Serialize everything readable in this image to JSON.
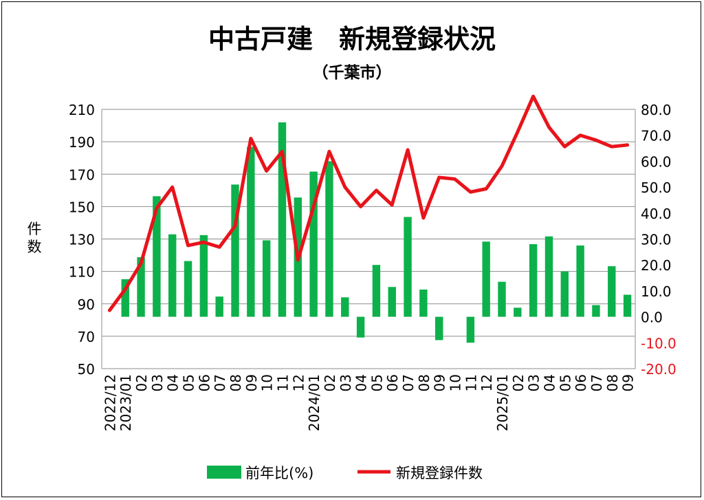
{
  "chart_data": {
    "type": "bar+line",
    "title": "中古戸建　新規登録状況",
    "subtitle": "（千葉市）",
    "ylabel_left": "件数",
    "categories": [
      "2022/12",
      "2023/01",
      "02",
      "03",
      "04",
      "05",
      "06",
      "07",
      "08",
      "09",
      "10",
      "11",
      "12",
      "2024/01",
      "02",
      "03",
      "04",
      "05",
      "06",
      "07",
      "08",
      "09",
      "10",
      "11",
      "12",
      "2025/01",
      "02",
      "03",
      "04",
      "05",
      "06",
      "07",
      "08",
      "09"
    ],
    "y_left": {
      "min": 50,
      "max": 210,
      "ticks": [
        "50",
        "70",
        "90",
        "110",
        "130",
        "150",
        "170",
        "190",
        "210"
      ]
    },
    "y_right": {
      "min": -20,
      "max": 80,
      "ticks": [
        "-20.0",
        "-10.0",
        "0.0",
        "10.0",
        "20.0",
        "30.0",
        "40.0",
        "50.0",
        "60.0",
        "70.0",
        "80.0"
      ]
    },
    "series": [
      {
        "name": "前年比(%)",
        "type": "bar",
        "axis": "right",
        "color": "#0db14b",
        "values": [
          null,
          14.5,
          23.0,
          46.5,
          31.8,
          21.5,
          31.5,
          7.8,
          51.0,
          65.5,
          29.5,
          75.0,
          46.0,
          56.0,
          60.0,
          7.5,
          -8.0,
          20.0,
          11.5,
          38.5,
          10.5,
          -9.0,
          null,
          -10.0,
          29.0,
          13.5,
          3.5,
          28.0,
          31.0,
          17.5,
          27.5,
          4.5,
          19.5,
          8.5
        ]
      },
      {
        "name": "新規登録件数",
        "type": "line",
        "axis": "left",
        "color": "#e8141b",
        "values": [
          86,
          99,
          115,
          149,
          162,
          126,
          128,
          125,
          138,
          192,
          172,
          184,
          117,
          150,
          184,
          162,
          150,
          160,
          151,
          185,
          143,
          168,
          167,
          159,
          161,
          175,
          196,
          218,
          199,
          187,
          194,
          191,
          187,
          188
        ]
      }
    ],
    "legend": {
      "position": "bottom",
      "bar_label": "前年比(%)",
      "line_label": "新規登録件数"
    },
    "grid": true
  }
}
